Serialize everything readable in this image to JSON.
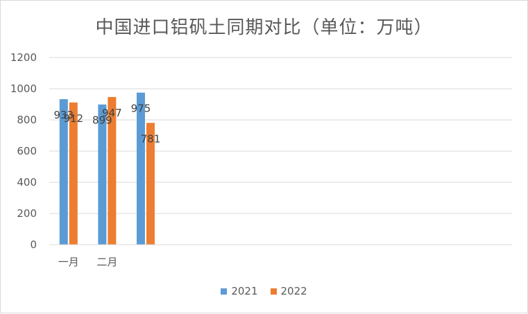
{
  "chart_data": {
    "type": "bar",
    "title": "中国进口铝矾土同期对比（单位：万吨）",
    "categories": [
      "一月",
      "二月",
      ""
    ],
    "series": [
      {
        "name": "2021",
        "values": [
          933,
          899,
          975
        ],
        "color": "#5b9bd5"
      },
      {
        "name": "2022",
        "values": [
          912,
          947,
          781
        ],
        "color": "#ed7d31"
      }
    ],
    "ylim": [
      0,
      1200
    ],
    "yticks": [
      0,
      200,
      400,
      600,
      800,
      1000,
      1200
    ],
    "grid": true,
    "legend_position": "bottom",
    "num_category_slots": 12
  }
}
